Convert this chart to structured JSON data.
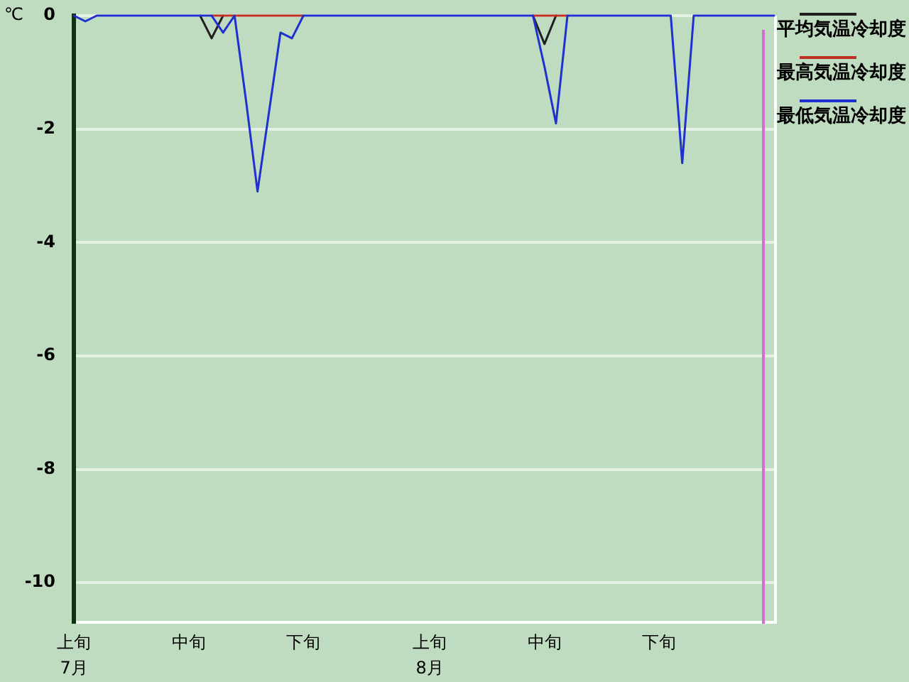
{
  "chart_data": {
    "type": "line",
    "ylabel": "℃",
    "categories": [
      "上旬\n7月",
      null,
      null,
      null,
      null,
      null,
      null,
      null,
      null,
      null,
      "中旬",
      null,
      null,
      null,
      null,
      null,
      null,
      null,
      null,
      null,
      "下旬",
      null,
      null,
      null,
      null,
      null,
      null,
      null,
      null,
      null,
      null,
      "上旬\n8月",
      null,
      null,
      null,
      null,
      null,
      null,
      null,
      null,
      null,
      "中旬",
      null,
      null,
      null,
      null,
      null,
      null,
      null,
      null,
      null,
      "下旬",
      null,
      null,
      null,
      null,
      null,
      null,
      null,
      null,
      null,
      null
    ],
    "series": [
      {
        "name": "平均気温冷却度",
        "color": "#202020",
        "values": [
          null,
          null,
          null,
          null,
          null,
          null,
          null,
          null,
          null,
          null,
          null,
          0,
          -0.4,
          0,
          null,
          null,
          null,
          null,
          null,
          null,
          null,
          null,
          null,
          null,
          null,
          null,
          null,
          null,
          null,
          null,
          null,
          null,
          null,
          null,
          null,
          null,
          null,
          null,
          null,
          null,
          0,
          -0.5,
          0,
          null,
          null,
          null,
          null,
          null,
          null,
          null,
          null,
          null,
          null,
          null,
          null,
          null,
          null,
          null,
          null,
          null,
          null,
          null
        ]
      },
      {
        "name": "最高気温冷却度",
        "color": "#c03020",
        "values": [
          null,
          null,
          null,
          null,
          null,
          null,
          null,
          null,
          null,
          null,
          null,
          null,
          0,
          0,
          0,
          0,
          0,
          0,
          0,
          0,
          0,
          null,
          null,
          null,
          null,
          null,
          null,
          null,
          null,
          null,
          null,
          null,
          null,
          null,
          null,
          null,
          null,
          null,
          null,
          null,
          0,
          0,
          0,
          0,
          null,
          null,
          null,
          null,
          null,
          null,
          null,
          null,
          null,
          null,
          null,
          null,
          null,
          null,
          null,
          null,
          null,
          null
        ]
      },
      {
        "name": "最低気温冷却度",
        "color": "#2030d0",
        "values": [
          0,
          -0.1,
          0,
          0,
          0,
          0,
          0,
          0,
          0,
          0,
          0,
          0,
          0,
          -0.3,
          0,
          -1.5,
          -3.1,
          -1.7,
          -0.3,
          -0.4,
          0,
          0,
          0,
          0,
          0,
          0,
          0,
          0,
          0,
          0,
          0,
          0,
          0,
          0,
          0,
          0,
          0,
          0,
          0,
          0,
          0,
          -0.9,
          -1.9,
          0,
          0,
          0,
          0,
          0,
          0,
          0,
          0,
          0,
          0,
          -2.6,
          0,
          0,
          0,
          0,
          0,
          0,
          0,
          0
        ]
      }
    ],
    "ylim": [
      -10.7,
      0
    ],
    "yticks": [
      0,
      -2,
      -4,
      -6,
      -8,
      -10
    ],
    "grid": "y",
    "legend": "top right"
  }
}
